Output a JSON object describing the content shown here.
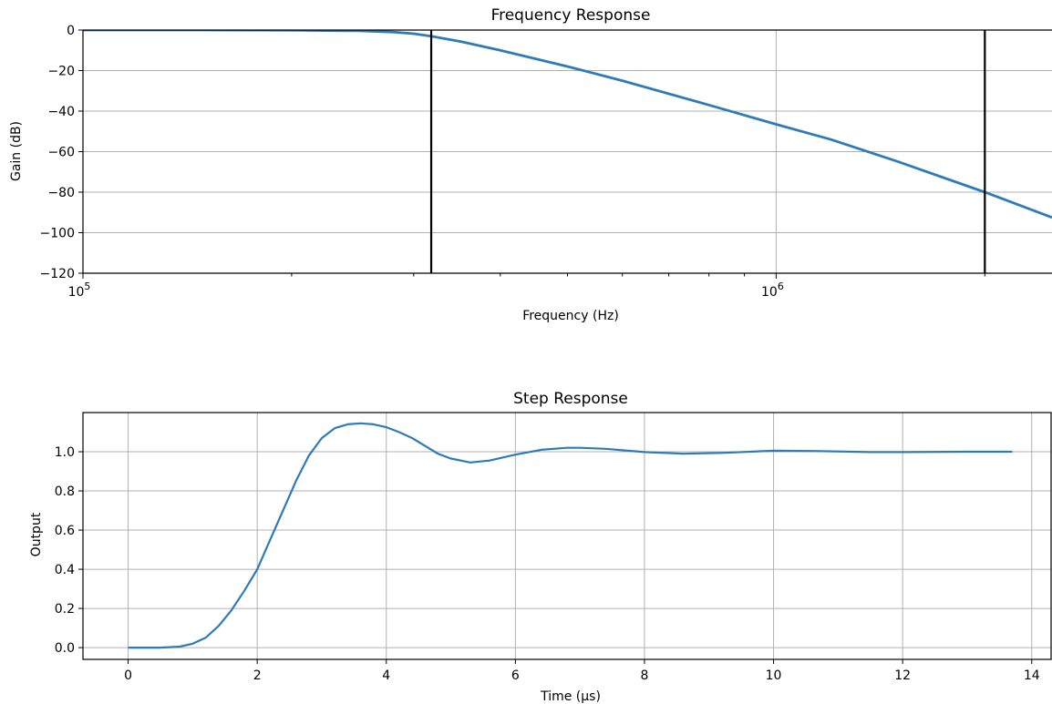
{
  "colors": {
    "line": "#2e7bb8",
    "grid": "#b0b0b0",
    "marker": "#000000"
  },
  "chart_data": [
    {
      "type": "line",
      "title": "Frequency Response",
      "xlabel": "Frequency (Hz)",
      "ylabel": "Gain (dB)",
      "xscale": "log",
      "xlim": [
        100000,
        2500000
      ],
      "ylim": [
        -120,
        0
      ],
      "yticks": [
        0,
        -20,
        -40,
        -60,
        -80,
        -100,
        -120
      ],
      "ytick_labels": [
        "0",
        "−20",
        "−40",
        "−60",
        "−80",
        "−100",
        "−120"
      ],
      "xtick_major": [
        {
          "value": 100000,
          "base": "10",
          "exp": "5"
        },
        {
          "value": 1000000,
          "base": "10",
          "exp": "6"
        }
      ],
      "grid": "on",
      "vertical_lines": [
        {
          "x": 318000,
          "name": "cutoff-marker"
        },
        {
          "x": 2000000,
          "name": "stopband-marker"
        }
      ],
      "series": [
        {
          "x": [
            100000,
            150000,
            200000,
            250000,
            280000,
            300000,
            318000,
            350000,
            400000,
            500000,
            600000,
            800000,
            1000000,
            1200000,
            1500000,
            2000000,
            2500000
          ],
          "y": [
            0,
            0,
            -0.1,
            -0.4,
            -1.0,
            -1.8,
            -3.0,
            -5.6,
            -10.0,
            -18.0,
            -25.0,
            -37.0,
            -46.5,
            -54.0,
            -65.0,
            -80.0,
            -92.5
          ]
        }
      ]
    },
    {
      "type": "line",
      "title": "Step Response",
      "xlabel": "Time (µs)",
      "ylabel": "Output",
      "xlim": [
        -0.7,
        14.3
      ],
      "ylim": [
        -0.06,
        1.2
      ],
      "xticks": [
        0,
        2,
        4,
        6,
        8,
        10,
        12,
        14
      ],
      "xtick_labels": [
        "0",
        "2",
        "4",
        "6",
        "8",
        "10",
        "12",
        "14"
      ],
      "yticks": [
        0.0,
        0.2,
        0.4,
        0.6,
        0.8,
        1.0
      ],
      "ytick_labels": [
        "0.0",
        "0.2",
        "0.4",
        "0.6",
        "0.8",
        "1.0"
      ],
      "grid": "on",
      "series": [
        {
          "x": [
            0,
            0.5,
            0.8,
            1.0,
            1.2,
            1.4,
            1.6,
            1.8,
            2.0,
            2.2,
            2.4,
            2.6,
            2.8,
            3.0,
            3.2,
            3.4,
            3.6,
            3.8,
            4.0,
            4.2,
            4.4,
            4.6,
            4.8,
            5.0,
            5.3,
            5.6,
            6.0,
            6.4,
            6.8,
            7.0,
            7.4,
            8.0,
            8.6,
            9.2,
            10.0,
            10.6,
            11.5,
            12.0,
            13.0,
            13.7
          ],
          "y": [
            0,
            0.0,
            0.005,
            0.02,
            0.05,
            0.11,
            0.19,
            0.29,
            0.4,
            0.55,
            0.7,
            0.85,
            0.98,
            1.07,
            1.12,
            1.14,
            1.145,
            1.14,
            1.125,
            1.1,
            1.07,
            1.03,
            0.99,
            0.965,
            0.945,
            0.955,
            0.985,
            1.01,
            1.02,
            1.02,
            1.015,
            0.998,
            0.99,
            0.994,
            1.005,
            1.004,
            0.998,
            0.998,
            1.0,
            1.0
          ]
        }
      ]
    }
  ]
}
